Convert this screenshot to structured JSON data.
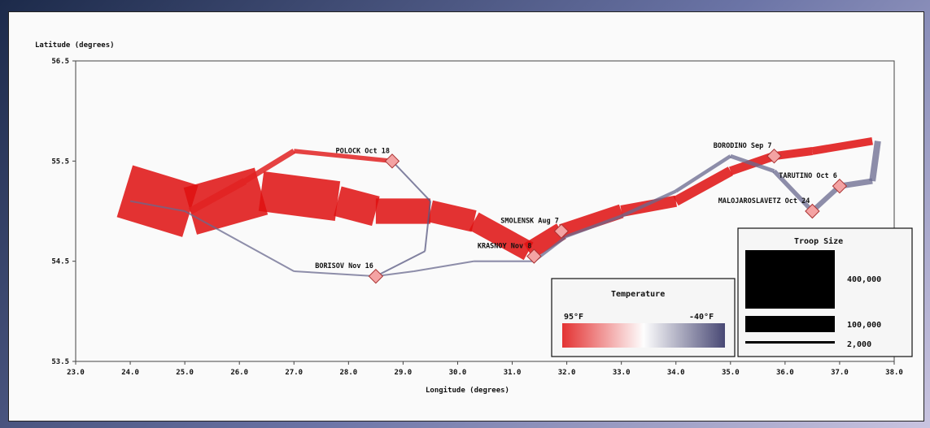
{
  "chart_data": {
    "type": "flow-map",
    "xlabel": "Longitude (degrees)",
    "ylabel": "Latitude (degrees)",
    "xlim": [
      23.0,
      38.0
    ],
    "ylim": [
      53.5,
      56.5
    ],
    "x_ticks": [
      "23.0",
      "24.0",
      "25.0",
      "26.0",
      "27.0",
      "28.0",
      "29.0",
      "30.0",
      "31.0",
      "32.0",
      "33.0",
      "34.0",
      "35.0",
      "36.0",
      "37.0",
      "38.0"
    ],
    "y_ticks": [
      "53.5",
      "54.5",
      "55.5",
      "56.5"
    ],
    "temperature_scale": {
      "title": "Temperature",
      "max_label": "95°F",
      "min_label": "-40°F",
      "hot_color": "#e01010",
      "mid_color": "#ffffff",
      "cold_color": "#2a2a5e"
    },
    "size_scale": {
      "title": "Troop Size",
      "labels": [
        "400,000",
        "100,000",
        "2,000"
      ],
      "values": [
        400000,
        100000,
        2000
      ]
    },
    "cities": [
      {
        "name": "POLOCK",
        "date": "Oct 18",
        "lon": 28.8,
        "lat": 55.5
      },
      {
        "name": "BORODINO",
        "date": "Sep 7",
        "lon": 35.8,
        "lat": 55.55
      },
      {
        "name": "TARUTINO",
        "date": "Oct 6",
        "lon": 37.0,
        "lat": 55.25
      },
      {
        "name": "MALOJAROSLAVETZ",
        "date": "Oct 24",
        "lon": 36.5,
        "lat": 55.0
      },
      {
        "name": "SMOLENSK",
        "date": "Aug 7",
        "lon": 31.9,
        "lat": 54.8
      },
      {
        "name": "KRASNOY",
        "date": "Nov 8",
        "lon": 31.4,
        "lat": 54.55
      },
      {
        "name": "BORISOV",
        "date": "Nov 16",
        "lon": 28.5,
        "lat": 54.35
      }
    ],
    "paths": [
      {
        "direction": "advance",
        "temp": 95,
        "points": [
          [
            23.9,
            55.2,
            420000
          ],
          [
            25.1,
            55.0,
            380000
          ],
          [
            26.4,
            55.2,
            340000
          ],
          [
            27.8,
            55.1,
            250000
          ],
          [
            28.5,
            55.0,
            200000
          ],
          [
            29.5,
            55.0,
            175000
          ],
          [
            30.3,
            54.9,
            150000
          ],
          [
            31.3,
            54.6,
            145000
          ],
          [
            31.9,
            54.8,
            120000
          ],
          [
            33.0,
            55.0,
            90000
          ],
          [
            34.0,
            55.1,
            80000
          ],
          [
            35.0,
            55.4,
            70000
          ],
          [
            35.8,
            55.55,
            60000
          ],
          [
            36.5,
            55.6,
            60000
          ],
          [
            37.6,
            55.7,
            55000
          ]
        ]
      },
      {
        "direction": "advance-north",
        "temp": 90,
        "points": [
          [
            25.1,
            55.0,
            60000
          ],
          [
            26.1,
            55.3,
            45000
          ],
          [
            27.0,
            55.6,
            35000
          ],
          [
            28.8,
            55.5,
            30000
          ]
        ]
      },
      {
        "direction": "retreat",
        "temp": -20,
        "points": [
          [
            37.7,
            55.7,
            50000
          ],
          [
            37.6,
            55.3,
            45000
          ],
          [
            37.0,
            55.25,
            40000
          ],
          [
            36.5,
            55.0,
            35000
          ],
          [
            35.8,
            55.4,
            30000
          ],
          [
            35.0,
            55.55,
            28000
          ],
          [
            34.0,
            55.2,
            26000
          ],
          [
            33.0,
            54.95,
            24000
          ],
          [
            32.0,
            54.75,
            22000
          ],
          [
            31.4,
            54.5,
            18000
          ],
          [
            30.3,
            54.5,
            8000
          ],
          [
            29.2,
            54.4,
            6000
          ],
          [
            28.5,
            54.35,
            5000
          ],
          [
            27.0,
            54.4,
            4000
          ],
          [
            26.0,
            54.7,
            3500
          ],
          [
            25.0,
            55.0,
            3000
          ],
          [
            24.0,
            55.1,
            2500
          ]
        ]
      },
      {
        "direction": "retreat-north",
        "temp": -25,
        "points": [
          [
            28.8,
            55.5,
            6000
          ],
          [
            29.5,
            55.1,
            5000
          ],
          [
            29.4,
            54.6,
            4500
          ],
          [
            28.5,
            54.35,
            4000
          ]
        ]
      }
    ]
  }
}
